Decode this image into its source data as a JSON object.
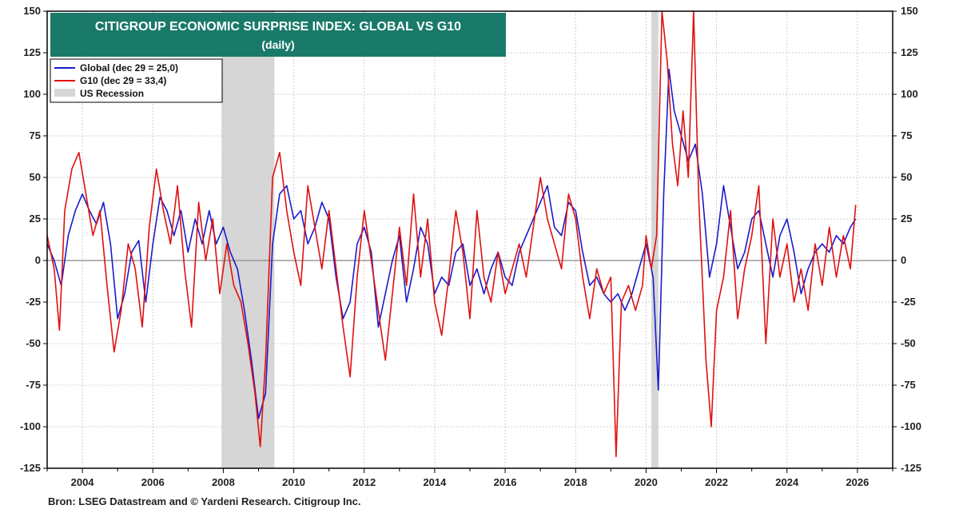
{
  "chart_data": {
    "type": "line",
    "title": "CITIGROUP ECONOMIC SURPRISE INDEX: GLOBAL VS G10",
    "subtitle": "(daily)",
    "source": "Bron: LSEG Datastream and © Yardeni Research. Citigroup Inc.",
    "xlim": [
      2003.0,
      2027.0
    ],
    "ylim": [
      -125,
      150
    ],
    "y_ticks": [
      150,
      125,
      100,
      75,
      50,
      25,
      0,
      -25,
      -50,
      -75,
      -100,
      -125
    ],
    "x_ticks": [
      2004,
      2006,
      2008,
      2010,
      2012,
      2014,
      2016,
      2018,
      2020,
      2022,
      2024,
      2026
    ],
    "grid": true,
    "legend_position": "top-left",
    "recessions": [
      {
        "label": "US Recession",
        "start": 2007.95,
        "end": 2009.45
      },
      {
        "start": 2020.15,
        "end": 2020.35
      }
    ],
    "series": [
      {
        "name": "Global (dec 29 = 25,0)",
        "color": "#1a1acc",
        "points": [
          [
            2003.0,
            10
          ],
          [
            2003.2,
            0
          ],
          [
            2003.4,
            -15
          ],
          [
            2003.6,
            15
          ],
          [
            2003.8,
            30
          ],
          [
            2004.0,
            40
          ],
          [
            2004.2,
            30
          ],
          [
            2004.4,
            22
          ],
          [
            2004.6,
            35
          ],
          [
            2004.8,
            10
          ],
          [
            2005.0,
            -35
          ],
          [
            2005.2,
            -20
          ],
          [
            2005.4,
            5
          ],
          [
            2005.6,
            12
          ],
          [
            2005.8,
            -25
          ],
          [
            2006.0,
            10
          ],
          [
            2006.2,
            38
          ],
          [
            2006.4,
            30
          ],
          [
            2006.6,
            15
          ],
          [
            2006.8,
            30
          ],
          [
            2007.0,
            5
          ],
          [
            2007.2,
            25
          ],
          [
            2007.4,
            10
          ],
          [
            2007.6,
            30
          ],
          [
            2007.8,
            10
          ],
          [
            2008.0,
            20
          ],
          [
            2008.2,
            5
          ],
          [
            2008.4,
            -5
          ],
          [
            2008.6,
            -30
          ],
          [
            2008.8,
            -60
          ],
          [
            2009.0,
            -95
          ],
          [
            2009.2,
            -80
          ],
          [
            2009.4,
            10
          ],
          [
            2009.6,
            40
          ],
          [
            2009.8,
            45
          ],
          [
            2010.0,
            25
          ],
          [
            2010.2,
            30
          ],
          [
            2010.4,
            10
          ],
          [
            2010.6,
            20
          ],
          [
            2010.8,
            35
          ],
          [
            2011.0,
            25
          ],
          [
            2011.2,
            -10
          ],
          [
            2011.4,
            -35
          ],
          [
            2011.6,
            -25
          ],
          [
            2011.8,
            10
          ],
          [
            2012.0,
            20
          ],
          [
            2012.2,
            5
          ],
          [
            2012.4,
            -40
          ],
          [
            2012.6,
            -20
          ],
          [
            2012.8,
            0
          ],
          [
            2013.0,
            15
          ],
          [
            2013.2,
            -25
          ],
          [
            2013.4,
            -5
          ],
          [
            2013.6,
            20
          ],
          [
            2013.8,
            10
          ],
          [
            2014.0,
            -20
          ],
          [
            2014.2,
            -10
          ],
          [
            2014.4,
            -15
          ],
          [
            2014.6,
            5
          ],
          [
            2014.8,
            10
          ],
          [
            2015.0,
            -15
          ],
          [
            2015.2,
            -5
          ],
          [
            2015.4,
            -20
          ],
          [
            2015.6,
            -5
          ],
          [
            2015.8,
            5
          ],
          [
            2016.0,
            -10
          ],
          [
            2016.2,
            -15
          ],
          [
            2016.4,
            5
          ],
          [
            2016.6,
            15
          ],
          [
            2016.8,
            25
          ],
          [
            2017.0,
            35
          ],
          [
            2017.2,
            45
          ],
          [
            2017.4,
            20
          ],
          [
            2017.6,
            15
          ],
          [
            2017.8,
            35
          ],
          [
            2018.0,
            30
          ],
          [
            2018.2,
            5
          ],
          [
            2018.4,
            -15
          ],
          [
            2018.6,
            -10
          ],
          [
            2018.8,
            -20
          ],
          [
            2019.0,
            -25
          ],
          [
            2019.2,
            -20
          ],
          [
            2019.4,
            -30
          ],
          [
            2019.6,
            -20
          ],
          [
            2019.8,
            -5
          ],
          [
            2020.0,
            10
          ],
          [
            2020.2,
            -10
          ],
          [
            2020.35,
            -78
          ],
          [
            2020.5,
            40
          ],
          [
            2020.65,
            115
          ],
          [
            2020.8,
            90
          ],
          [
            2021.0,
            75
          ],
          [
            2021.2,
            60
          ],
          [
            2021.4,
            70
          ],
          [
            2021.6,
            40
          ],
          [
            2021.8,
            -10
          ],
          [
            2022.0,
            10
          ],
          [
            2022.2,
            45
          ],
          [
            2022.4,
            20
          ],
          [
            2022.6,
            -5
          ],
          [
            2022.8,
            5
          ],
          [
            2023.0,
            25
          ],
          [
            2023.2,
            30
          ],
          [
            2023.4,
            10
          ],
          [
            2023.6,
            -10
          ],
          [
            2023.8,
            15
          ],
          [
            2024.0,
            25
          ],
          [
            2024.2,
            5
          ],
          [
            2024.4,
            -20
          ],
          [
            2024.6,
            -5
          ],
          [
            2024.8,
            5
          ],
          [
            2025.0,
            10
          ],
          [
            2025.2,
            5
          ],
          [
            2025.4,
            15
          ],
          [
            2025.6,
            10
          ],
          [
            2025.8,
            20
          ],
          [
            2025.95,
            25
          ]
        ]
      },
      {
        "name": "G10 (dec 29 = 33,4)",
        "color": "#e01010",
        "points": [
          [
            2003.0,
            15
          ],
          [
            2003.2,
            -5
          ],
          [
            2003.35,
            -42
          ],
          [
            2003.5,
            30
          ],
          [
            2003.7,
            55
          ],
          [
            2003.9,
            65
          ],
          [
            2004.1,
            40
          ],
          [
            2004.3,
            15
          ],
          [
            2004.5,
            30
          ],
          [
            2004.7,
            -15
          ],
          [
            2004.9,
            -55
          ],
          [
            2005.1,
            -30
          ],
          [
            2005.3,
            10
          ],
          [
            2005.5,
            -5
          ],
          [
            2005.7,
            -40
          ],
          [
            2005.9,
            20
          ],
          [
            2006.1,
            55
          ],
          [
            2006.3,
            30
          ],
          [
            2006.5,
            10
          ],
          [
            2006.7,
            45
          ],
          [
            2006.9,
            -5
          ],
          [
            2007.1,
            -40
          ],
          [
            2007.3,
            35
          ],
          [
            2007.5,
            0
          ],
          [
            2007.7,
            25
          ],
          [
            2007.9,
            -20
          ],
          [
            2008.1,
            10
          ],
          [
            2008.3,
            -15
          ],
          [
            2008.5,
            -25
          ],
          [
            2008.7,
            -50
          ],
          [
            2008.9,
            -80
          ],
          [
            2009.05,
            -112
          ],
          [
            2009.2,
            -60
          ],
          [
            2009.4,
            50
          ],
          [
            2009.6,
            65
          ],
          [
            2009.8,
            30
          ],
          [
            2010.0,
            5
          ],
          [
            2010.2,
            -15
          ],
          [
            2010.4,
            45
          ],
          [
            2010.6,
            20
          ],
          [
            2010.8,
            -5
          ],
          [
            2011.0,
            30
          ],
          [
            2011.2,
            -5
          ],
          [
            2011.4,
            -40
          ],
          [
            2011.6,
            -70
          ],
          [
            2011.8,
            -10
          ],
          [
            2012.0,
            30
          ],
          [
            2012.2,
            0
          ],
          [
            2012.4,
            -30
          ],
          [
            2012.6,
            -60
          ],
          [
            2012.8,
            -20
          ],
          [
            2013.0,
            20
          ],
          [
            2013.2,
            -15
          ],
          [
            2013.4,
            40
          ],
          [
            2013.6,
            -10
          ],
          [
            2013.8,
            25
          ],
          [
            2014.0,
            -25
          ],
          [
            2014.2,
            -45
          ],
          [
            2014.4,
            -10
          ],
          [
            2014.6,
            30
          ],
          [
            2014.8,
            5
          ],
          [
            2015.0,
            -35
          ],
          [
            2015.2,
            30
          ],
          [
            2015.4,
            -10
          ],
          [
            2015.6,
            -25
          ],
          [
            2015.8,
            5
          ],
          [
            2016.0,
            -20
          ],
          [
            2016.2,
            -5
          ],
          [
            2016.4,
            10
          ],
          [
            2016.6,
            -10
          ],
          [
            2016.8,
            20
          ],
          [
            2017.0,
            50
          ],
          [
            2017.2,
            25
          ],
          [
            2017.4,
            10
          ],
          [
            2017.6,
            -5
          ],
          [
            2017.8,
            40
          ],
          [
            2018.0,
            25
          ],
          [
            2018.2,
            -10
          ],
          [
            2018.4,
            -35
          ],
          [
            2018.6,
            -5
          ],
          [
            2018.8,
            -20
          ],
          [
            2019.0,
            -10
          ],
          [
            2019.15,
            -118
          ],
          [
            2019.3,
            -25
          ],
          [
            2019.5,
            -15
          ],
          [
            2019.7,
            -30
          ],
          [
            2019.9,
            -15
          ],
          [
            2020.0,
            15
          ],
          [
            2020.15,
            -5
          ],
          [
            2020.3,
            15
          ],
          [
            2020.45,
            150
          ],
          [
            2020.6,
            120
          ],
          [
            2020.75,
            70
          ],
          [
            2020.9,
            45
          ],
          [
            2021.05,
            90
          ],
          [
            2021.2,
            50
          ],
          [
            2021.35,
            150
          ],
          [
            2021.5,
            35
          ],
          [
            2021.7,
            -60
          ],
          [
            2021.85,
            -100
          ],
          [
            2022.0,
            -30
          ],
          [
            2022.2,
            -10
          ],
          [
            2022.4,
            30
          ],
          [
            2022.6,
            -35
          ],
          [
            2022.8,
            -5
          ],
          [
            2023.0,
            15
          ],
          [
            2023.2,
            45
          ],
          [
            2023.4,
            -50
          ],
          [
            2023.6,
            25
          ],
          [
            2023.8,
            -10
          ],
          [
            2024.0,
            10
          ],
          [
            2024.2,
            -25
          ],
          [
            2024.4,
            -5
          ],
          [
            2024.6,
            -30
          ],
          [
            2024.8,
            10
          ],
          [
            2025.0,
            -15
          ],
          [
            2025.2,
            20
          ],
          [
            2025.4,
            -10
          ],
          [
            2025.6,
            15
          ],
          [
            2025.8,
            -5
          ],
          [
            2025.95,
            33.4
          ]
        ]
      }
    ]
  }
}
